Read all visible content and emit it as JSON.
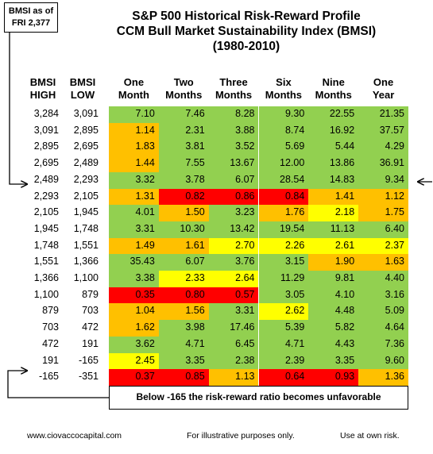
{
  "chart_data": {
    "type": "table",
    "title": [
      "S&P 500 Historical Risk-Reward Profile",
      "CCM Bull Market Sustainability Index (BMSI)",
      "(1980-2010)"
    ],
    "callout": [
      "BMSI as of",
      "FRI 2,377"
    ],
    "row_headers": [
      {
        "label": "BMSI",
        "sub": "HIGH"
      },
      {
        "label": "BMSI",
        "sub": "LOW"
      }
    ],
    "columns": [
      {
        "line1": "One",
        "line2": "Month"
      },
      {
        "line1": "Two",
        "line2": "Months"
      },
      {
        "line1": "Three",
        "line2": "Months"
      },
      {
        "line1": "Six",
        "line2": "Months"
      },
      {
        "line1": "Nine",
        "line2": "Months"
      },
      {
        "line1": "One",
        "line2": "Year"
      }
    ],
    "rows": [
      {
        "high": "3,284",
        "low": "3,091",
        "values": [
          "7.10",
          "7.46",
          "8.28",
          "9.30",
          "22.55",
          "21.35"
        ],
        "colors": [
          "g",
          "g",
          "g",
          "g",
          "g",
          "g"
        ]
      },
      {
        "high": "3,091",
        "low": "2,895",
        "values": [
          "1.14",
          "2.31",
          "3.88",
          "8.74",
          "16.92",
          "37.57"
        ],
        "colors": [
          "o",
          "g",
          "g",
          "g",
          "g",
          "g"
        ]
      },
      {
        "high": "2,895",
        "low": "2,695",
        "values": [
          "1.83",
          "3.81",
          "3.52",
          "5.69",
          "5.44",
          "4.29"
        ],
        "colors": [
          "o",
          "g",
          "g",
          "g",
          "g",
          "g"
        ]
      },
      {
        "high": "2,695",
        "low": "2,489",
        "values": [
          "1.44",
          "7.55",
          "13.67",
          "12.00",
          "13.86",
          "36.91"
        ],
        "colors": [
          "o",
          "g",
          "g",
          "g",
          "g",
          "g"
        ]
      },
      {
        "high": "2,489",
        "low": "2,293",
        "values": [
          "3.32",
          "3.78",
          "6.07",
          "28.54",
          "14.83",
          "9.34"
        ],
        "colors": [
          "g",
          "g",
          "g",
          "g",
          "g",
          "g"
        ]
      },
      {
        "high": "2,293",
        "low": "2,105",
        "values": [
          "1.31",
          "0.82",
          "0.86",
          "0.84",
          "1.41",
          "1.12"
        ],
        "colors": [
          "o",
          "r",
          "r",
          "r",
          "o",
          "o"
        ]
      },
      {
        "high": "2,105",
        "low": "1,945",
        "values": [
          "4.01",
          "1.50",
          "3.23",
          "1.76",
          "2.18",
          "1.75"
        ],
        "colors": [
          "g",
          "o",
          "g",
          "o",
          "y",
          "o"
        ]
      },
      {
        "high": "1,945",
        "low": "1,748",
        "values": [
          "3.31",
          "10.30",
          "13.42",
          "19.54",
          "11.13",
          "6.40"
        ],
        "colors": [
          "g",
          "g",
          "g",
          "g",
          "g",
          "g"
        ]
      },
      {
        "high": "1,748",
        "low": "1,551",
        "values": [
          "1.49",
          "1.61",
          "2.70",
          "2.26",
          "2.61",
          "2.37"
        ],
        "colors": [
          "o",
          "o",
          "y",
          "y",
          "y",
          "y"
        ]
      },
      {
        "high": "1,551",
        "low": "1,366",
        "values": [
          "35.43",
          "6.07",
          "3.76",
          "3.15",
          "1.90",
          "1.63"
        ],
        "colors": [
          "g",
          "g",
          "g",
          "g",
          "o",
          "o"
        ]
      },
      {
        "high": "1,366",
        "low": "1,100",
        "values": [
          "3.38",
          "2.33",
          "2.64",
          "11.29",
          "9.81",
          "4.40"
        ],
        "colors": [
          "g",
          "y",
          "y",
          "g",
          "g",
          "g"
        ]
      },
      {
        "high": "1,100",
        "low": "879",
        "values": [
          "0.35",
          "0.80",
          "0.57",
          "3.05",
          "4.10",
          "3.16"
        ],
        "colors": [
          "r",
          "r",
          "r",
          "g",
          "g",
          "g"
        ]
      },
      {
        "high": "879",
        "low": "703",
        "values": [
          "1.04",
          "1.56",
          "3.31",
          "2.62",
          "4.48",
          "5.09"
        ],
        "colors": [
          "o",
          "o",
          "g",
          "y",
          "g",
          "g"
        ]
      },
      {
        "high": "703",
        "low": "472",
        "values": [
          "1.62",
          "3.98",
          "17.46",
          "5.39",
          "5.82",
          "4.64"
        ],
        "colors": [
          "o",
          "g",
          "g",
          "g",
          "g",
          "g"
        ]
      },
      {
        "high": "472",
        "low": "191",
        "values": [
          "3.62",
          "4.71",
          "6.45",
          "4.71",
          "4.43",
          "7.36"
        ],
        "colors": [
          "g",
          "g",
          "g",
          "g",
          "g",
          "g"
        ]
      },
      {
        "high": "191",
        "low": "-165",
        "values": [
          "2.45",
          "3.35",
          "2.38",
          "2.39",
          "3.35",
          "9.60"
        ],
        "colors": [
          "y",
          "g",
          "g",
          "g",
          "g",
          "g"
        ]
      },
      {
        "high": "-165",
        "low": "-351",
        "values": [
          "0.37",
          "0.85",
          "1.13",
          "0.64",
          "0.93",
          "1.36"
        ],
        "colors": [
          "r",
          "r",
          "o",
          "r",
          "r",
          "o"
        ]
      }
    ],
    "palette": {
      "g": "#92d050",
      "o": "#ffc000",
      "r": "#ff0000",
      "y": "#ffff00"
    },
    "note": "Below -165 the risk-reward ratio becomes unfavorable",
    "highlight_row_index": 4
  },
  "footer": {
    "site": "www.ciovaccocapital.com",
    "disclaimer": "For illustrative purposes only.",
    "risk": "Use at own risk."
  }
}
